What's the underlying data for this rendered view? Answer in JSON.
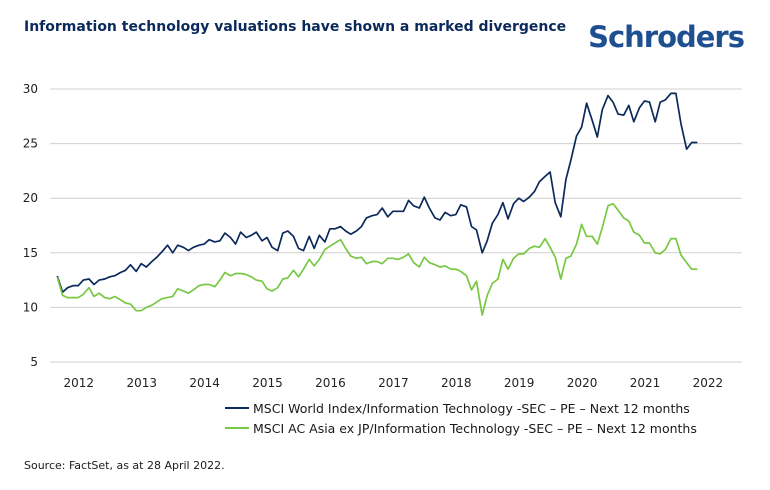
{
  "header": {
    "title": "Information technology valuations have shown a marked divergence",
    "logo_text": "Schroders"
  },
  "source": "Source: FactSet, as at 28 April 2022.",
  "colors": {
    "series_1": "#0b2a5b",
    "series_2": "#78c843",
    "grid": "#d0d0d0",
    "axis_text": "#222222"
  },
  "chart_data": {
    "type": "line",
    "title": "Information technology valuations have shown a marked divergence",
    "xlabel": "",
    "ylabel": "",
    "xlim": [
      2011.55,
      2022.55
    ],
    "ylim": [
      5,
      30
    ],
    "yticks": [
      5,
      10,
      15,
      20,
      25,
      30
    ],
    "xticks": [
      2012,
      2013,
      2014,
      2015,
      2016,
      2017,
      2018,
      2019,
      2020,
      2021,
      2022
    ],
    "grid": "horizontal",
    "legend_position": "bottom",
    "series": [
      {
        "name": "MSCI World Index/Information Technology -SEC – PE – Next 12 months",
        "points": [
          [
            2011.67,
            12.8
          ],
          [
            2011.75,
            11.4
          ],
          [
            2011.83,
            11.8
          ],
          [
            2011.92,
            12.0
          ],
          [
            2012.0,
            12.0
          ],
          [
            2012.08,
            12.5
          ],
          [
            2012.17,
            12.6
          ],
          [
            2012.25,
            12.1
          ],
          [
            2012.33,
            12.5
          ],
          [
            2012.42,
            12.6
          ],
          [
            2012.5,
            12.8
          ],
          [
            2012.58,
            12.9
          ],
          [
            2012.67,
            13.2
          ],
          [
            2012.75,
            13.4
          ],
          [
            2012.83,
            13.9
          ],
          [
            2012.92,
            13.3
          ],
          [
            2013.0,
            14.0
          ],
          [
            2013.08,
            13.7
          ],
          [
            2013.17,
            14.2
          ],
          [
            2013.25,
            14.6
          ],
          [
            2013.33,
            15.1
          ],
          [
            2013.42,
            15.7
          ],
          [
            2013.5,
            15.0
          ],
          [
            2013.58,
            15.7
          ],
          [
            2013.67,
            15.5
          ],
          [
            2013.75,
            15.2
          ],
          [
            2013.83,
            15.5
          ],
          [
            2013.92,
            15.7
          ],
          [
            2014.0,
            15.8
          ],
          [
            2014.08,
            16.2
          ],
          [
            2014.17,
            16.0
          ],
          [
            2014.25,
            16.1
          ],
          [
            2014.33,
            16.8
          ],
          [
            2014.42,
            16.4
          ],
          [
            2014.5,
            15.8
          ],
          [
            2014.58,
            16.9
          ],
          [
            2014.67,
            16.4
          ],
          [
            2014.75,
            16.6
          ],
          [
            2014.83,
            16.9
          ],
          [
            2014.92,
            16.1
          ],
          [
            2015.0,
            16.4
          ],
          [
            2015.08,
            15.5
          ],
          [
            2015.17,
            15.2
          ],
          [
            2015.25,
            16.8
          ],
          [
            2015.33,
            17.0
          ],
          [
            2015.42,
            16.5
          ],
          [
            2015.5,
            15.4
          ],
          [
            2015.58,
            15.2
          ],
          [
            2015.67,
            16.5
          ],
          [
            2015.75,
            15.4
          ],
          [
            2015.83,
            16.6
          ],
          [
            2015.92,
            16.0
          ],
          [
            2016.0,
            17.2
          ],
          [
            2016.08,
            17.2
          ],
          [
            2016.17,
            17.4
          ],
          [
            2016.25,
            17.0
          ],
          [
            2016.33,
            16.7
          ],
          [
            2016.42,
            17.0
          ],
          [
            2016.5,
            17.4
          ],
          [
            2016.58,
            18.2
          ],
          [
            2016.67,
            18.4
          ],
          [
            2016.75,
            18.5
          ],
          [
            2016.83,
            19.1
          ],
          [
            2016.92,
            18.3
          ],
          [
            2017.0,
            18.8
          ],
          [
            2017.08,
            18.8
          ],
          [
            2017.17,
            18.8
          ],
          [
            2017.25,
            19.8
          ],
          [
            2017.33,
            19.3
          ],
          [
            2017.42,
            19.1
          ],
          [
            2017.5,
            20.1
          ],
          [
            2017.58,
            19.1
          ],
          [
            2017.67,
            18.2
          ],
          [
            2017.75,
            18.0
          ],
          [
            2017.83,
            18.7
          ],
          [
            2017.92,
            18.4
          ],
          [
            2018.0,
            18.5
          ],
          [
            2018.08,
            19.4
          ],
          [
            2018.17,
            19.2
          ],
          [
            2018.25,
            17.4
          ],
          [
            2018.33,
            17.1
          ],
          [
            2018.42,
            15.0
          ],
          [
            2018.5,
            16.1
          ],
          [
            2018.58,
            17.7
          ],
          [
            2018.67,
            18.5
          ],
          [
            2018.75,
            19.6
          ],
          [
            2018.83,
            18.1
          ],
          [
            2018.92,
            19.5
          ],
          [
            2019.0,
            20.0
          ],
          [
            2019.08,
            19.7
          ],
          [
            2019.17,
            20.1
          ],
          [
            2019.25,
            20.6
          ],
          [
            2019.33,
            21.5
          ],
          [
            2019.42,
            22.0
          ],
          [
            2019.5,
            22.4
          ],
          [
            2019.58,
            19.6
          ],
          [
            2019.67,
            18.3
          ],
          [
            2019.75,
            21.7
          ],
          [
            2019.83,
            23.5
          ],
          [
            2019.92,
            25.7
          ],
          [
            2020.0,
            26.5
          ],
          [
            2020.08,
            28.7
          ],
          [
            2020.17,
            27.1
          ],
          [
            2020.25,
            25.6
          ],
          [
            2020.33,
            28.1
          ],
          [
            2020.42,
            29.4
          ],
          [
            2020.5,
            28.8
          ],
          [
            2020.58,
            27.7
          ],
          [
            2020.67,
            27.6
          ],
          [
            2020.75,
            28.5
          ],
          [
            2020.83,
            27.0
          ],
          [
            2020.92,
            28.3
          ],
          [
            2021.0,
            28.9
          ],
          [
            2021.08,
            28.8
          ],
          [
            2021.17,
            27.0
          ],
          [
            2021.25,
            28.8
          ],
          [
            2021.33,
            29.0
          ],
          [
            2021.42,
            29.6
          ],
          [
            2021.5,
            29.6
          ],
          [
            2021.58,
            26.8
          ],
          [
            2021.67,
            24.5
          ],
          [
            2021.75,
            25.1
          ],
          [
            2021.83,
            25.1
          ]
        ]
      },
      {
        "name": "MSCI AC Asia ex JP/Information Technology -SEC – PE – Next 12 months",
        "points": [
          [
            2011.67,
            12.7
          ],
          [
            2011.75,
            11.1
          ],
          [
            2011.83,
            10.9
          ],
          [
            2011.92,
            10.9
          ],
          [
            2012.0,
            10.9
          ],
          [
            2012.08,
            11.2
          ],
          [
            2012.17,
            11.8
          ],
          [
            2012.25,
            11.0
          ],
          [
            2012.33,
            11.3
          ],
          [
            2012.42,
            10.9
          ],
          [
            2012.5,
            10.8
          ],
          [
            2012.58,
            11.0
          ],
          [
            2012.67,
            10.7
          ],
          [
            2012.75,
            10.4
          ],
          [
            2012.83,
            10.3
          ],
          [
            2012.92,
            9.7
          ],
          [
            2013.0,
            9.7
          ],
          [
            2013.08,
            10.0
          ],
          [
            2013.17,
            10.2
          ],
          [
            2013.25,
            10.5
          ],
          [
            2013.33,
            10.8
          ],
          [
            2013.42,
            10.9
          ],
          [
            2013.5,
            11.0
          ],
          [
            2013.58,
            11.7
          ],
          [
            2013.67,
            11.5
          ],
          [
            2013.75,
            11.3
          ],
          [
            2013.83,
            11.6
          ],
          [
            2013.92,
            12.0
          ],
          [
            2014.0,
            12.1
          ],
          [
            2014.08,
            12.1
          ],
          [
            2014.17,
            11.9
          ],
          [
            2014.25,
            12.5
          ],
          [
            2014.33,
            13.2
          ],
          [
            2014.42,
            12.9
          ],
          [
            2014.5,
            13.1
          ],
          [
            2014.58,
            13.1
          ],
          [
            2014.67,
            13.0
          ],
          [
            2014.75,
            12.8
          ],
          [
            2014.83,
            12.5
          ],
          [
            2014.92,
            12.4
          ],
          [
            2015.0,
            11.7
          ],
          [
            2015.08,
            11.5
          ],
          [
            2015.17,
            11.8
          ],
          [
            2015.25,
            12.6
          ],
          [
            2015.33,
            12.7
          ],
          [
            2015.42,
            13.4
          ],
          [
            2015.5,
            12.8
          ],
          [
            2015.58,
            13.5
          ],
          [
            2015.67,
            14.4
          ],
          [
            2015.75,
            13.8
          ],
          [
            2015.83,
            14.4
          ],
          [
            2015.92,
            15.3
          ],
          [
            2016.0,
            15.6
          ],
          [
            2016.08,
            15.9
          ],
          [
            2016.17,
            16.2
          ],
          [
            2016.25,
            15.4
          ],
          [
            2016.33,
            14.7
          ],
          [
            2016.42,
            14.5
          ],
          [
            2016.5,
            14.6
          ],
          [
            2016.58,
            14.0
          ],
          [
            2016.67,
            14.2
          ],
          [
            2016.75,
            14.2
          ],
          [
            2016.83,
            14.0
          ],
          [
            2016.92,
            14.5
          ],
          [
            2017.0,
            14.5
          ],
          [
            2017.08,
            14.4
          ],
          [
            2017.17,
            14.6
          ],
          [
            2017.25,
            14.9
          ],
          [
            2017.33,
            14.1
          ],
          [
            2017.42,
            13.7
          ],
          [
            2017.5,
            14.6
          ],
          [
            2017.58,
            14.1
          ],
          [
            2017.67,
            13.9
          ],
          [
            2017.75,
            13.7
          ],
          [
            2017.83,
            13.8
          ],
          [
            2017.92,
            13.5
          ],
          [
            2018.0,
            13.5
          ],
          [
            2018.08,
            13.3
          ],
          [
            2018.17,
            12.9
          ],
          [
            2018.25,
            11.6
          ],
          [
            2018.33,
            12.4
          ],
          [
            2018.42,
            9.3
          ],
          [
            2018.5,
            11.1
          ],
          [
            2018.58,
            12.2
          ],
          [
            2018.67,
            12.6
          ],
          [
            2018.75,
            14.4
          ],
          [
            2018.83,
            13.5
          ],
          [
            2018.92,
            14.5
          ],
          [
            2019.0,
            14.9
          ],
          [
            2019.08,
            14.9
          ],
          [
            2019.17,
            15.4
          ],
          [
            2019.25,
            15.6
          ],
          [
            2019.33,
            15.5
          ],
          [
            2019.42,
            16.3
          ],
          [
            2019.5,
            15.5
          ],
          [
            2019.58,
            14.6
          ],
          [
            2019.67,
            12.6
          ],
          [
            2019.75,
            14.5
          ],
          [
            2019.83,
            14.7
          ],
          [
            2019.92,
            15.8
          ],
          [
            2020.0,
            17.6
          ],
          [
            2020.08,
            16.5
          ],
          [
            2020.17,
            16.5
          ],
          [
            2020.25,
            15.8
          ],
          [
            2020.33,
            17.3
          ],
          [
            2020.42,
            19.3
          ],
          [
            2020.5,
            19.5
          ],
          [
            2020.58,
            18.9
          ],
          [
            2020.67,
            18.2
          ],
          [
            2020.75,
            17.9
          ],
          [
            2020.83,
            16.9
          ],
          [
            2020.92,
            16.6
          ],
          [
            2021.0,
            15.9
          ],
          [
            2021.08,
            15.9
          ],
          [
            2021.17,
            15.0
          ],
          [
            2021.25,
            14.9
          ],
          [
            2021.33,
            15.3
          ],
          [
            2021.42,
            16.3
          ],
          [
            2021.5,
            16.3
          ],
          [
            2021.58,
            14.8
          ],
          [
            2021.67,
            14.1
          ],
          [
            2021.75,
            13.5
          ],
          [
            2021.83,
            13.5
          ]
        ]
      }
    ]
  }
}
